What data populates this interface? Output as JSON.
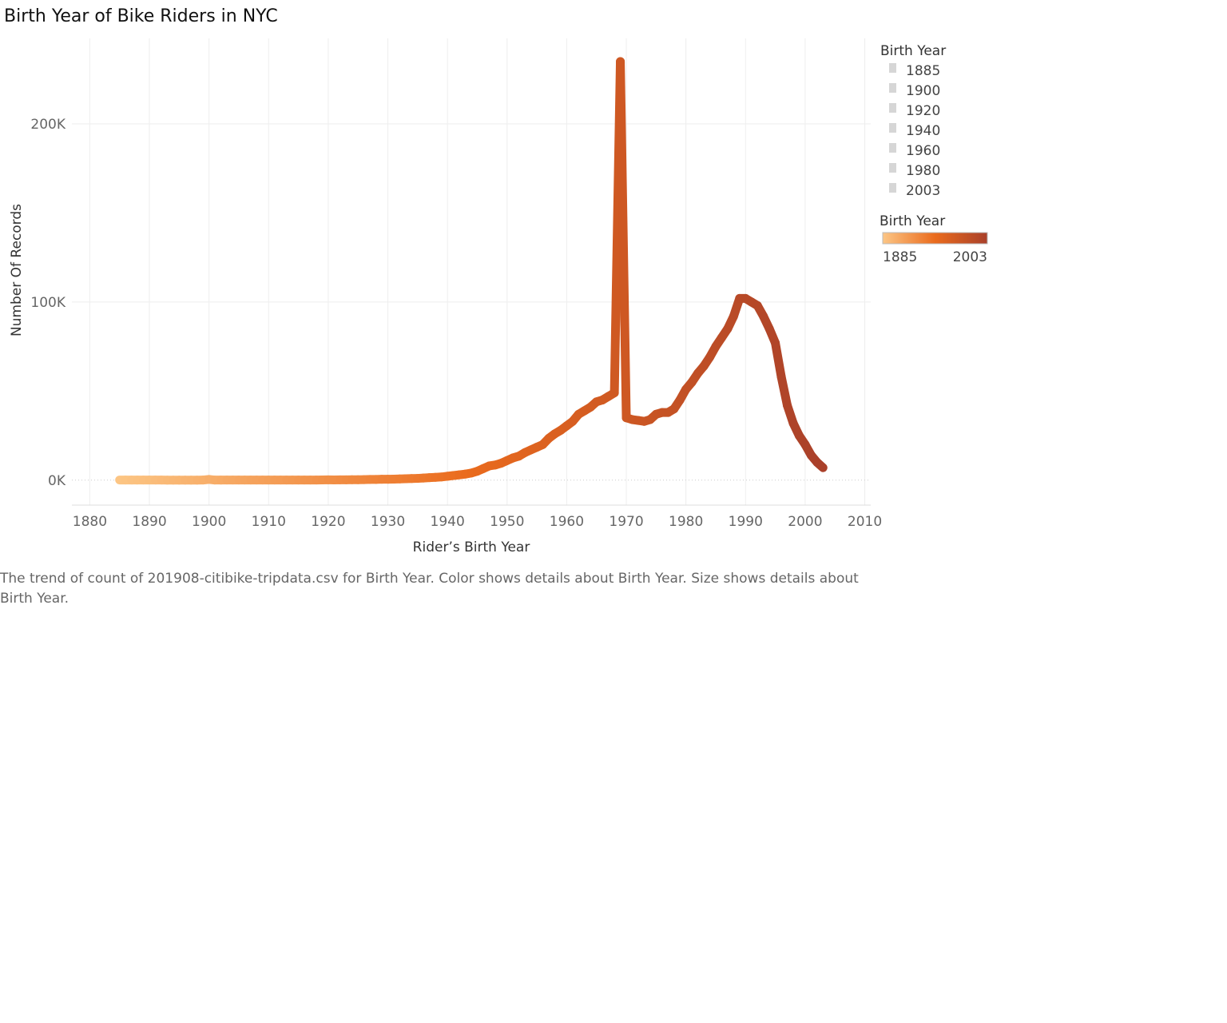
{
  "chart_data": {
    "type": "line",
    "title": "Birth Year of Bike Riders in NYC",
    "xlabel": "Rider’s Birth Year",
    "ylabel": "Number Of Records",
    "xlim": [
      1877,
      2011
    ],
    "ylim": [
      -14000,
      248000
    ],
    "x_ticks": [
      1880,
      1890,
      1900,
      1910,
      1920,
      1930,
      1940,
      1950,
      1960,
      1970,
      1980,
      1990,
      2000,
      2010
    ],
    "y_ticks": [
      {
        "value": 0,
        "label": "0K"
      },
      {
        "value": 100000,
        "label": "100K"
      },
      {
        "value": 200000,
        "label": "200K"
      }
    ],
    "grid": true,
    "legend_position": "right",
    "series": [
      {
        "x": [
          1885,
          1886,
          1887,
          1888,
          1889,
          1890,
          1891,
          1892,
          1893,
          1894,
          1895,
          1896,
          1897,
          1898,
          1899,
          1900,
          1901,
          1902,
          1903,
          1904,
          1905,
          1906,
          1907,
          1908,
          1909,
          1910,
          1911,
          1912,
          1913,
          1914,
          1915,
          1916,
          1917,
          1918,
          1919,
          1920,
          1921,
          1922,
          1923,
          1924,
          1925,
          1926,
          1927,
          1928,
          1929,
          1930,
          1931,
          1932,
          1933,
          1934,
          1935,
          1936,
          1937,
          1938,
          1939,
          1940,
          1941,
          1942,
          1943,
          1944,
          1945,
          1946,
          1947,
          1948,
          1949,
          1950,
          1951,
          1952,
          1953,
          1954,
          1955,
          1956,
          1957,
          1958,
          1959,
          1960,
          1961,
          1962,
          1963,
          1964,
          1965,
          1966,
          1967,
          1968,
          1969,
          1970,
          1971,
          1972,
          1973,
          1974,
          1975,
          1976,
          1977,
          1978,
          1979,
          1980,
          1981,
          1982,
          1983,
          1984,
          1985,
          1986,
          1987,
          1988,
          1989,
          1990,
          1991,
          1992,
          1993,
          1994,
          1995,
          1996,
          1997,
          1998,
          1999,
          2000,
          2001,
          2002,
          2003
        ],
        "values": [
          100,
          80,
          60,
          60,
          80,
          100,
          60,
          50,
          40,
          40,
          40,
          30,
          30,
          40,
          80,
          400,
          50,
          50,
          60,
          60,
          60,
          60,
          60,
          60,
          70,
          80,
          90,
          100,
          100,
          100,
          100,
          100,
          100,
          100,
          150,
          200,
          150,
          200,
          200,
          250,
          250,
          300,
          400,
          400,
          500,
          500,
          600,
          700,
          800,
          900,
          1000,
          1200,
          1400,
          1600,
          1800,
          2200,
          2600,
          3000,
          3400,
          4000,
          5000,
          6500,
          8000,
          8500,
          9500,
          11000,
          12500,
          13500,
          15500,
          17000,
          18500,
          20000,
          23500,
          26000,
          28000,
          30500,
          33000,
          37000,
          39000,
          41000,
          44000,
          45000,
          47000,
          49000,
          235000,
          35000,
          34000,
          33500,
          33000,
          34000,
          37000,
          38000,
          38000,
          40000,
          45000,
          51000,
          55000,
          60000,
          64000,
          69000,
          75000,
          80000,
          85000,
          92000,
          102000,
          102000,
          100000,
          98000,
          92000,
          85000,
          77000,
          58000,
          42000,
          32000,
          25000,
          20000,
          14000,
          10000,
          7000
        ]
      }
    ],
    "legend_size": {
      "title": "Birth Year",
      "entries": [
        "1885",
        "1900",
        "1920",
        "1940",
        "1960",
        "1980",
        "2003"
      ]
    },
    "legend_color": {
      "title": "Birth Year",
      "min_label": "1885",
      "max_label": "2003",
      "colors": [
        "#fcc685",
        "#ea6b1d",
        "#a9402a"
      ]
    },
    "caption": "The trend of count of 201908-citibike-tripdata.csv for Birth Year.  Color shows details about Birth Year.  Size shows details about Birth Year."
  }
}
